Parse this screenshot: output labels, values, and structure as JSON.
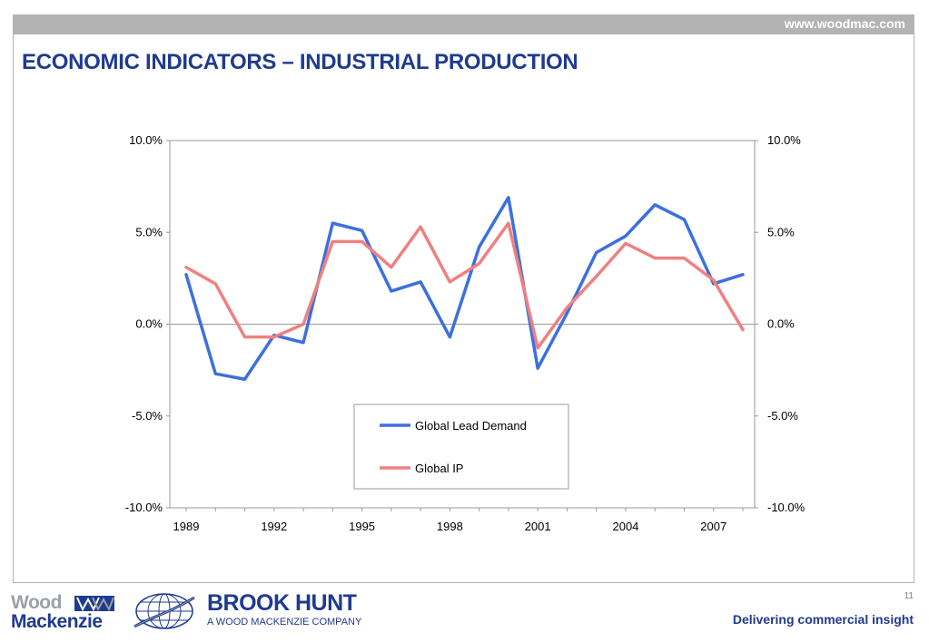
{
  "header": {
    "url": "www.woodmac.com",
    "title": "ECONOMIC INDICATORS – INDUSTRIAL PRODUCTION"
  },
  "chart_data": {
    "type": "line",
    "title": "",
    "xlabel": "",
    "ylabel": "",
    "x": [
      1989,
      1990,
      1991,
      1992,
      1993,
      1994,
      1995,
      1996,
      1997,
      1998,
      1999,
      2000,
      2001,
      2002,
      2003,
      2004,
      2005,
      2006,
      2007,
      2008
    ],
    "x_tick_labels": [
      "1989",
      "1992",
      "1995",
      "1998",
      "2001",
      "2004",
      "2007"
    ],
    "ylim": [
      -10,
      10
    ],
    "y_tick_labels": [
      "10.0%",
      "5.0%",
      "0.0%",
      "-5.0%",
      "-10.0%"
    ],
    "secondary_axis": true,
    "grid": false,
    "legend_position": "bottom-center",
    "series": [
      {
        "name": "Global Lead Demand",
        "color": "#3d6fe0",
        "values": [
          2.7,
          -2.7,
          -3.0,
          -0.6,
          -1.0,
          5.5,
          5.1,
          1.8,
          2.3,
          -0.7,
          4.2,
          6.9,
          -2.4,
          0.6,
          3.9,
          4.8,
          6.5,
          5.7,
          2.2,
          2.7
        ]
      },
      {
        "name": "Global IP",
        "color": "#f08080",
        "values": [
          3.1,
          2.2,
          -0.7,
          -0.7,
          0.0,
          4.5,
          4.5,
          3.1,
          5.3,
          2.3,
          3.3,
          5.5,
          -1.3,
          0.9,
          2.6,
          4.4,
          3.6,
          3.6,
          2.4,
          -0.3
        ]
      }
    ]
  },
  "footer": {
    "wm_line1": "Wood",
    "wm_line2": "Mackenzie",
    "bh_name": "BROOK HUNT",
    "bh_sub": "A WOOD MACKENZIE COMPANY",
    "page_number": "11",
    "tagline": "Delivering commercial insight"
  }
}
